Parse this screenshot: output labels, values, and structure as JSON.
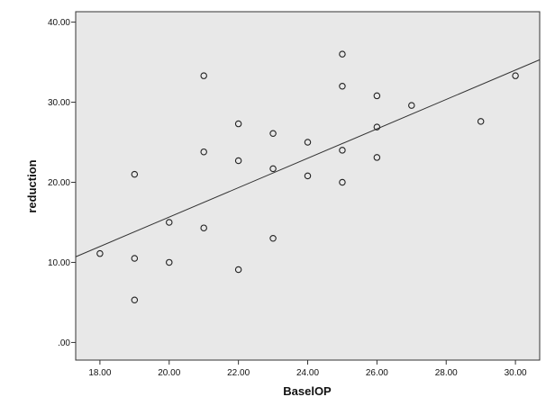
{
  "colors": {
    "plot_background": "#e8e8e8",
    "axis": "#333333",
    "marker": "#222222",
    "fit_line": "#333333"
  },
  "chart_data": {
    "type": "scatter",
    "title": "",
    "xlabel": "BaselOP",
    "ylabel": "reduction",
    "xlim": [
      17.3,
      30.7
    ],
    "ylim": [
      -2.2,
      41.3
    ],
    "x_ticks": [
      18,
      20,
      22,
      24,
      26,
      28,
      30
    ],
    "x_tick_labels": [
      "18.00",
      "20.00",
      "22.00",
      "24.00",
      "26.00",
      "28.00",
      "30.00"
    ],
    "y_ticks": [
      0,
      10,
      20,
      30,
      40
    ],
    "y_tick_labels": [
      ".00",
      "10.00",
      "20.00",
      "30.00",
      "40.00"
    ],
    "grid": false,
    "legend": "none",
    "points": [
      {
        "x": 18,
        "y": 11.1
      },
      {
        "x": 19,
        "y": 21.0
      },
      {
        "x": 19,
        "y": 10.5
      },
      {
        "x": 19,
        "y": 5.3
      },
      {
        "x": 20,
        "y": 15.0
      },
      {
        "x": 20,
        "y": 10.0
      },
      {
        "x": 21,
        "y": 33.3
      },
      {
        "x": 21,
        "y": 23.8
      },
      {
        "x": 21,
        "y": 14.3
      },
      {
        "x": 22,
        "y": 27.3
      },
      {
        "x": 22,
        "y": 22.7
      },
      {
        "x": 22,
        "y": 9.1
      },
      {
        "x": 23,
        "y": 26.1
      },
      {
        "x": 23,
        "y": 21.7
      },
      {
        "x": 23,
        "y": 13.0
      },
      {
        "x": 24,
        "y": 25.0
      },
      {
        "x": 24,
        "y": 20.8
      },
      {
        "x": 25,
        "y": 36.0
      },
      {
        "x": 25,
        "y": 32.0
      },
      {
        "x": 25,
        "y": 24.0
      },
      {
        "x": 25,
        "y": 20.0
      },
      {
        "x": 26,
        "y": 30.8
      },
      {
        "x": 26,
        "y": 26.9
      },
      {
        "x": 26,
        "y": 23.1
      },
      {
        "x": 27,
        "y": 29.6
      },
      {
        "x": 29,
        "y": 27.6
      },
      {
        "x": 30,
        "y": 33.3
      }
    ],
    "fit_line": {
      "x": [
        17.3,
        30.7
      ],
      "y": [
        10.7,
        35.3
      ]
    }
  }
}
